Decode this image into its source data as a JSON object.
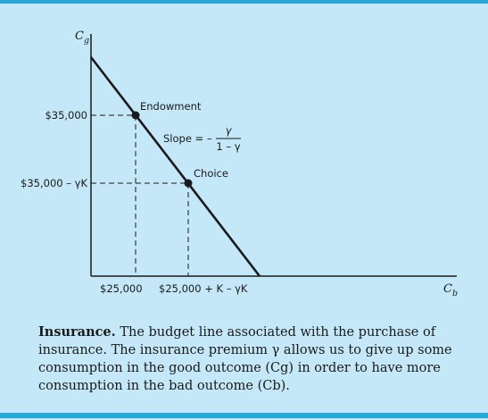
{
  "diagram": {
    "y_axis_label": "C",
    "y_axis_subscript": "g",
    "x_axis_label": "C",
    "x_axis_subscript": "b",
    "y_tick_endowment": "$35,000",
    "y_tick_choice": "$35,000 – γK",
    "x_tick_endowment": "$25,000",
    "x_tick_choice": "$25,000 + K – γK",
    "point_endowment": "Endowment",
    "point_choice": "Choice",
    "slope_prefix": "Slope = –",
    "slope_numerator": "γ",
    "slope_denominator": "1 – γ"
  },
  "caption": {
    "title": "Insurance.",
    "text": "The budget line associated with the purchase of insurance. The insurance premium γ allows us to give up some consumption in the good outcome (Cg) in order to have more consumption in the bad outcome (Cb)."
  },
  "colors": {
    "background": "#c4e8f7",
    "rule": "#29a8d8",
    "ink": "#1a1a1a"
  }
}
